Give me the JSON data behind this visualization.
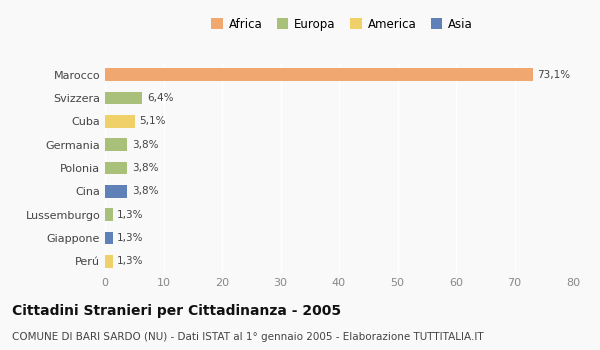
{
  "categories": [
    "Marocco",
    "Svizzera",
    "Cuba",
    "Germania",
    "Polonia",
    "Cina",
    "Lussemburgo",
    "Giappone",
    "Perú"
  ],
  "values": [
    73.1,
    6.4,
    5.1,
    3.8,
    3.8,
    3.8,
    1.3,
    1.3,
    1.3
  ],
  "labels": [
    "73,1%",
    "6,4%",
    "5,1%",
    "3,8%",
    "3,8%",
    "3,8%",
    "1,3%",
    "1,3%",
    "1,3%"
  ],
  "colors": [
    "#f0a870",
    "#a8c07a",
    "#f0d068",
    "#a8c07a",
    "#a8c07a",
    "#6080b8",
    "#a8c07a",
    "#6080b8",
    "#f0d068"
  ],
  "legend": [
    {
      "label": "Africa",
      "color": "#f0a870"
    },
    {
      "label": "Europa",
      "color": "#a8c07a"
    },
    {
      "label": "America",
      "color": "#f0d068"
    },
    {
      "label": "Asia",
      "color": "#6080b8"
    }
  ],
  "xlim": [
    0,
    80
  ],
  "xticks": [
    0,
    10,
    20,
    30,
    40,
    50,
    60,
    70,
    80
  ],
  "title": "Cittadini Stranieri per Cittadinanza - 2005",
  "subtitle": "COMUNE DI BARI SARDO (NU) - Dati ISTAT al 1° gennaio 2005 - Elaborazione TUTTITALIA.IT",
  "bg_color": "#f9f9f9",
  "grid_color": "#ffffff",
  "bar_height": 0.55,
  "label_fontsize": 7.5,
  "ytick_fontsize": 8,
  "xtick_fontsize": 8,
  "title_fontsize": 10,
  "subtitle_fontsize": 7.5
}
